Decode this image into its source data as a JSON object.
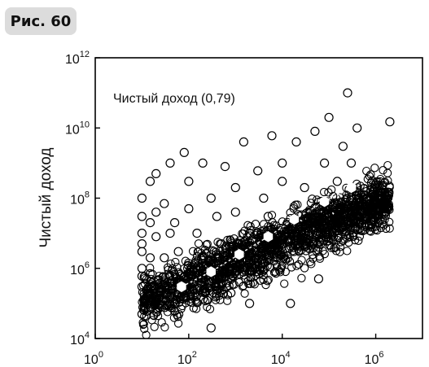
{
  "figure_label": "Рис. 60",
  "colors": {
    "points": "#000000",
    "median_markers": "#ffffff",
    "background": "#ffffff"
  },
  "chart_data": {
    "type": "scatter",
    "title": "",
    "xlabel": "",
    "ylabel": "Чистый доход",
    "x_scale": "log",
    "y_scale": "log",
    "xlim": [
      1,
      10000000
    ],
    "ylim": [
      10000,
      1000000000000
    ],
    "x_ticks": [
      {
        "base": "10",
        "exp": "0"
      },
      {
        "base": "10",
        "exp": "2"
      },
      {
        "base": "10",
        "exp": "4"
      },
      {
        "base": "10",
        "exp": "6"
      }
    ],
    "y_ticks": [
      {
        "base": "10",
        "exp": "4"
      },
      {
        "base": "10",
        "exp": "6"
      },
      {
        "base": "10",
        "exp": "8"
      },
      {
        "base": "10",
        "exp": "10"
      },
      {
        "base": "10",
        "exp": "12"
      }
    ],
    "annotation": "Чистый доход (0,79)",
    "grid": false,
    "series": [
      {
        "marker": "open-circle",
        "points": [
          [
            10,
            30000000
          ],
          [
            10,
            3000000
          ],
          [
            10,
            300000
          ],
          [
            10,
            1000000
          ],
          [
            10,
            10000000
          ],
          [
            10,
            100000000
          ],
          [
            10,
            50000
          ],
          [
            10,
            600000
          ],
          [
            10,
            5000000
          ],
          [
            15,
            20000000
          ],
          [
            15,
            2000000
          ],
          [
            15,
            300000000
          ],
          [
            15,
            700000
          ],
          [
            20,
            100000
          ],
          [
            20,
            8000000
          ],
          [
            20,
            40000000
          ],
          [
            20,
            500000000
          ],
          [
            30,
            2000000
          ],
          [
            30,
            70000000
          ],
          [
            30,
            400000
          ],
          [
            40,
            10000000
          ],
          [
            40,
            1000000000
          ],
          [
            50,
            20000000
          ],
          [
            50,
            60000
          ],
          [
            60,
            3000000
          ],
          [
            80,
            2000000000
          ],
          [
            100,
            50000000
          ],
          [
            100,
            700000
          ],
          [
            100,
            300000000
          ],
          [
            150,
            10000000
          ],
          [
            200,
            2000000
          ],
          [
            200,
            1000000000
          ],
          [
            300,
            100000000
          ],
          [
            300,
            20000
          ],
          [
            400,
            30000000
          ],
          [
            500,
            5000000
          ],
          [
            600,
            800000000
          ],
          [
            800,
            200000
          ],
          [
            1000,
            200000000
          ],
          [
            1000,
            40000000
          ],
          [
            1500,
            4000000000
          ],
          [
            2000,
            10000000
          ],
          [
            2000,
            100000
          ],
          [
            3000,
            600000000
          ],
          [
            4000,
            100000000
          ],
          [
            5000,
            30000000
          ],
          [
            6000,
            6000000000
          ],
          [
            8000,
            2000000
          ],
          [
            10000,
            1000000000
          ],
          [
            10000,
            300000000
          ],
          [
            15000,
            100000
          ],
          [
            20000,
            4000000000
          ],
          [
            30000,
            200000000
          ],
          [
            40000,
            20000000
          ],
          [
            50000,
            8000000000
          ],
          [
            60000,
            500000
          ],
          [
            80000,
            1000000000
          ],
          [
            100000,
            20000000000
          ],
          [
            150000,
            300000000
          ],
          [
            200000,
            3000000000
          ],
          [
            250000,
            100000000000
          ],
          [
            300000,
            1000000000
          ],
          [
            400000,
            10000000000
          ],
          [
            2000000,
            15000000000
          ]
        ]
      },
      {
        "name": "",
        "marker": "filled-white-hexagon",
        "points": [
          [
            70,
            300000
          ],
          [
            300,
            800000
          ],
          [
            1200,
            2500000
          ],
          [
            5000,
            8000000
          ],
          [
            18000,
            25000000
          ],
          [
            80000,
            80000000
          ],
          [
            300000,
            200000000
          ]
        ]
      }
    ]
  }
}
